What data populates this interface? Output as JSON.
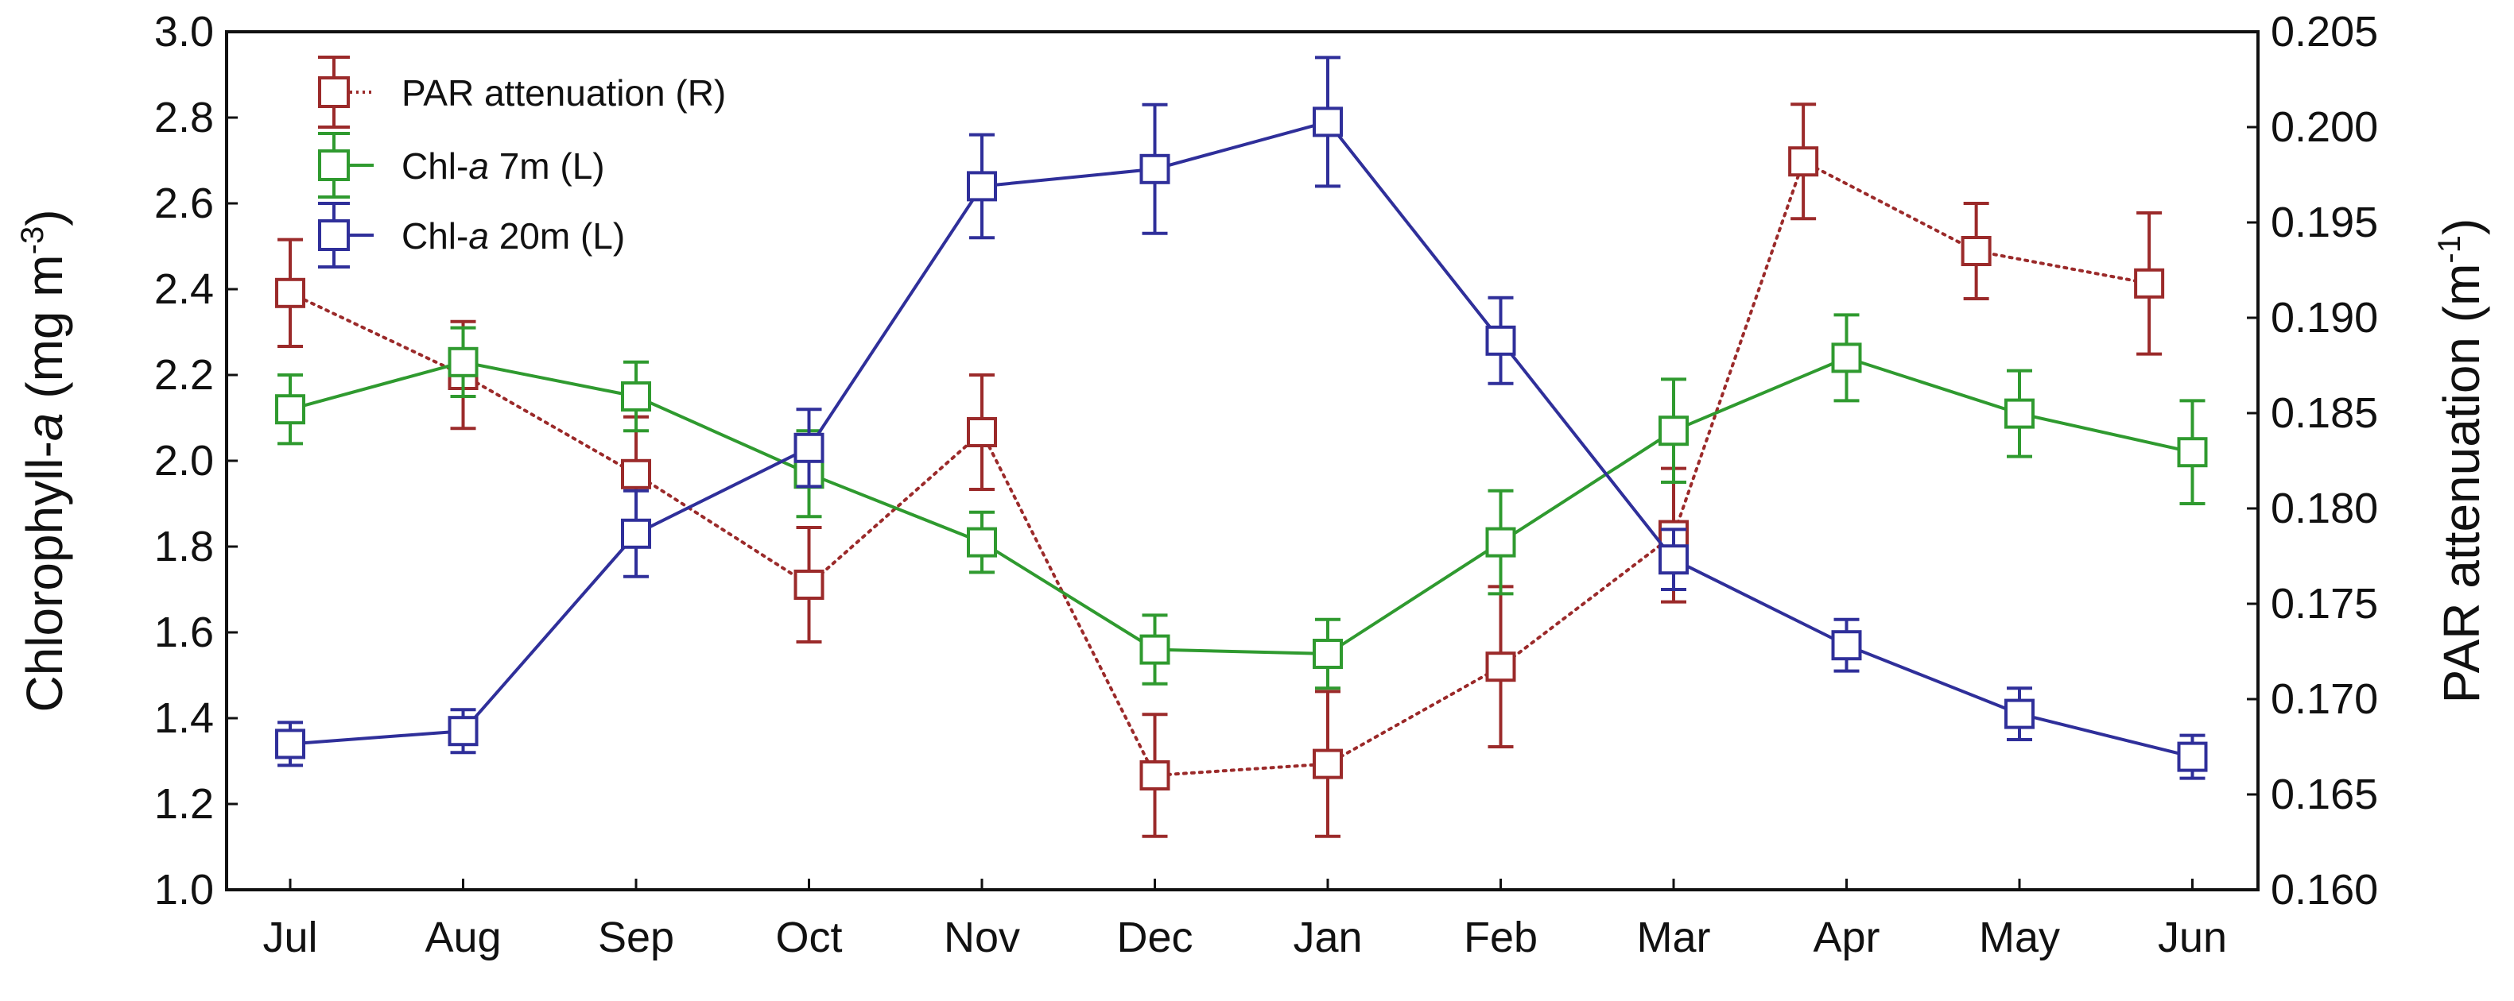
{
  "chart_data": {
    "type": "line",
    "categories": [
      "Jul",
      "Aug",
      "Sep",
      "Oct",
      "Nov",
      "Dec",
      "Jan",
      "Feb",
      "Mar",
      "Apr",
      "May",
      "Jun"
    ],
    "left_axis": {
      "label_main": "Chlorophyll-",
      "label_italic": "a",
      "label_units": " (mg m",
      "label_sup": "-3",
      "label_close": ")",
      "ylim": [
        1.0,
        3.0
      ],
      "ticks": [
        "1.0",
        "1.2",
        "1.4",
        "1.6",
        "1.8",
        "2.0",
        "2.2",
        "2.4",
        "2.6",
        "2.8",
        "3.0"
      ]
    },
    "right_axis": {
      "label_main": "PAR attenuation (m",
      "label_sup": "-1",
      "label_close": ")",
      "ylim": [
        0.16,
        0.205
      ],
      "ticks": [
        "0.160",
        "0.165",
        "0.170",
        "0.175",
        "0.180",
        "0.185",
        "0.190",
        "0.195",
        "0.200",
        "0.205"
      ]
    },
    "series": [
      {
        "name": "PAR attenuation (R)",
        "axis": "right",
        "color": "#9b2a2a",
        "line_style": "dotted",
        "x_positions": [
          0,
          1,
          2,
          3,
          4,
          5,
          6,
          7,
          8,
          8.75,
          9.75,
          10.75
        ],
        "values": [
          0.1913,
          0.187,
          0.1818,
          0.176,
          0.184,
          0.166,
          0.1666,
          0.1717,
          0.1786,
          0.1982,
          0.1935,
          0.1918
        ],
        "err": [
          0.0028,
          0.0028,
          0.003,
          0.003,
          0.003,
          0.0032,
          0.0038,
          0.0042,
          0.0035,
          0.003,
          0.0025,
          0.0037
        ]
      },
      {
        "name_main": "Chl-",
        "name_italic": "a",
        "name_rest": " 7m (L)",
        "axis": "left",
        "color": "#2f9a2f",
        "line_style": "solid",
        "x_positions": [
          0,
          1,
          2,
          3,
          4,
          5,
          6,
          7,
          8,
          9,
          10,
          11
        ],
        "values": [
          2.12,
          2.23,
          2.15,
          1.97,
          1.81,
          1.56,
          1.55,
          1.81,
          2.07,
          2.24,
          2.11,
          2.02
        ],
        "err": [
          0.08,
          0.08,
          0.08,
          0.1,
          0.07,
          0.08,
          0.08,
          0.12,
          0.12,
          0.1,
          0.1,
          0.12
        ]
      },
      {
        "name_main": "Chl-",
        "name_italic": "a",
        "name_rest": " 20m (L)",
        "axis": "left",
        "color": "#2f2f9a",
        "line_style": "solid",
        "x_positions": [
          0,
          1,
          2,
          3,
          4,
          5,
          6,
          7,
          8,
          9,
          10,
          11
        ],
        "values": [
          1.34,
          1.37,
          1.83,
          2.03,
          2.64,
          2.68,
          2.79,
          2.28,
          1.77,
          1.57,
          1.41,
          1.31
        ],
        "err": [
          0.05,
          0.05,
          0.1,
          0.09,
          0.12,
          0.15,
          0.15,
          0.1,
          0.07,
          0.06,
          0.06,
          0.05
        ],
        "draw_from": 0
      }
    ],
    "legend_position": "top-left",
    "grid": false
  }
}
